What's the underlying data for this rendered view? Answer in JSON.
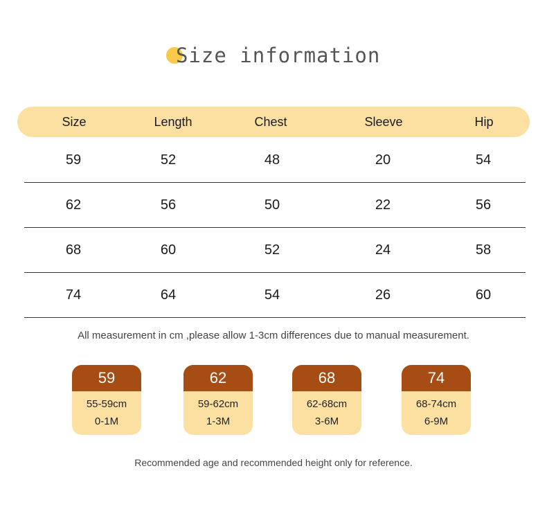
{
  "title": "Size information",
  "table": {
    "headers": [
      "Size",
      "Length",
      "Chest",
      "Sleeve",
      "Hip"
    ],
    "rows": [
      [
        "59",
        "52",
        "48",
        "20",
        "54"
      ],
      [
        "62",
        "56",
        "50",
        "22",
        "56"
      ],
      [
        "68",
        "60",
        "52",
        "24",
        "58"
      ],
      [
        "74",
        "64",
        "54",
        "26",
        "60"
      ]
    ]
  },
  "measurement_note": "All measurement in cm ,please allow 1-3cm differences due to manual measurement.",
  "size_cards": [
    {
      "size": "59",
      "height": "55-59cm",
      "age": "0-1M"
    },
    {
      "size": "62",
      "height": "59-62cm",
      "age": "1-3M"
    },
    {
      "size": "68",
      "height": "62-68cm",
      "age": "3-6M"
    },
    {
      "size": "74",
      "height": "68-74cm",
      "age": "6-9M"
    }
  ],
  "reference_note": "Recommended age and recommended height only for reference.",
  "colors": {
    "accent_yellow": "#fbe0a2",
    "title_dot": "#f9c94a",
    "card_header_brown": "#a54d14",
    "divider": "#333333"
  }
}
